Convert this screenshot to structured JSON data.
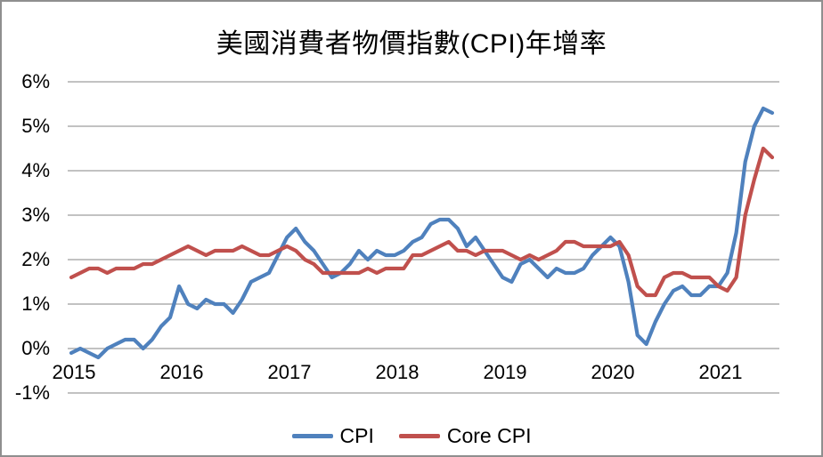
{
  "chart_data": {
    "type": "line",
    "title": "美國消費者物價指數(CPI)年增率",
    "x_start": "2015-01",
    "x_end": "2021-07",
    "x_interval": "monthly",
    "x_tick_labels": [
      "2015",
      "2016",
      "2017",
      "2018",
      "2019",
      "2020",
      "2021"
    ],
    "y_tick_labels": [
      "6%",
      "5%",
      "4%",
      "3%",
      "2%",
      "1%",
      "0%",
      "-1%"
    ],
    "y_tick_values": [
      6,
      5,
      4,
      3,
      2,
      1,
      0,
      -1
    ],
    "ylim": [
      -1,
      6
    ],
    "y_unit": "percent",
    "grid": "horizontal",
    "legend_position": "bottom-center",
    "series": [
      {
        "name": "CPI",
        "color": "#4f81bd",
        "values": [
          -0.1,
          0.0,
          -0.1,
          -0.2,
          0.0,
          0.1,
          0.2,
          0.2,
          0.0,
          0.2,
          0.5,
          0.7,
          1.4,
          1.0,
          0.9,
          1.1,
          1.0,
          1.0,
          0.8,
          1.1,
          1.5,
          1.6,
          1.7,
          2.1,
          2.5,
          2.7,
          2.4,
          2.2,
          1.9,
          1.6,
          1.7,
          1.9,
          2.2,
          2.0,
          2.2,
          2.1,
          2.1,
          2.2,
          2.4,
          2.5,
          2.8,
          2.9,
          2.9,
          2.7,
          2.3,
          2.5,
          2.2,
          1.9,
          1.6,
          1.5,
          1.9,
          2.0,
          1.8,
          1.6,
          1.8,
          1.7,
          1.7,
          1.8,
          2.1,
          2.3,
          2.5,
          2.3,
          1.5,
          0.3,
          0.1,
          0.6,
          1.0,
          1.3,
          1.4,
          1.2,
          1.2,
          1.4,
          1.4,
          1.7,
          2.6,
          4.2,
          5.0,
          5.4,
          5.3
        ]
      },
      {
        "name": "Core CPI",
        "color": "#c0504d",
        "values": [
          1.6,
          1.7,
          1.8,
          1.8,
          1.7,
          1.8,
          1.8,
          1.8,
          1.9,
          1.9,
          2.0,
          2.1,
          2.2,
          2.3,
          2.2,
          2.1,
          2.2,
          2.2,
          2.2,
          2.3,
          2.2,
          2.1,
          2.1,
          2.2,
          2.3,
          2.2,
          2.0,
          1.9,
          1.7,
          1.7,
          1.7,
          1.7,
          1.7,
          1.8,
          1.7,
          1.8,
          1.8,
          1.8,
          2.1,
          2.1,
          2.2,
          2.3,
          2.4,
          2.2,
          2.2,
          2.1,
          2.2,
          2.2,
          2.2,
          2.1,
          2.0,
          2.1,
          2.0,
          2.1,
          2.2,
          2.4,
          2.4,
          2.3,
          2.3,
          2.3,
          2.3,
          2.4,
          2.1,
          1.4,
          1.2,
          1.2,
          1.6,
          1.7,
          1.7,
          1.6,
          1.6,
          1.6,
          1.4,
          1.3,
          1.6,
          3.0,
          3.8,
          4.5,
          4.3
        ]
      }
    ]
  },
  "styles": {
    "gridline_color": "#9d9d9d",
    "border_color": "#8f8f8f",
    "text_color": "#000000",
    "background": "#ffffff"
  }
}
